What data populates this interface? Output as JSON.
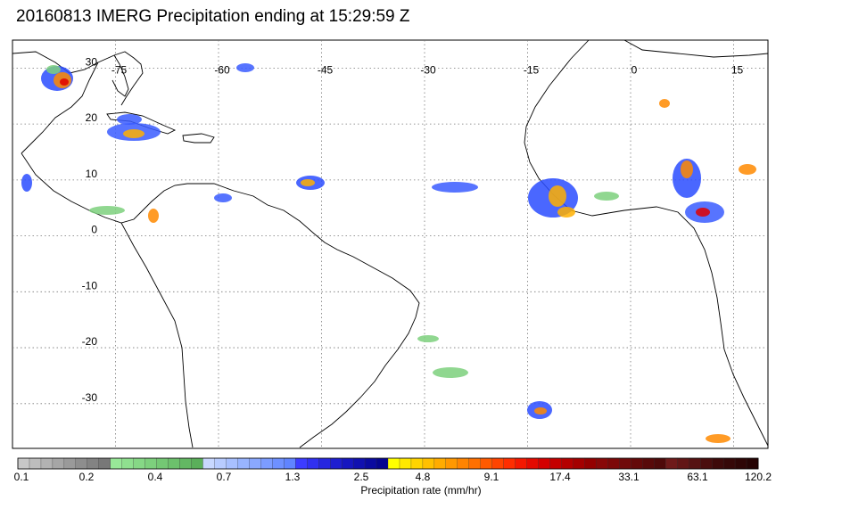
{
  "title": "20160813 IMERG Precipitation ending at 15:29:59 Z",
  "map": {
    "lon_labels": [
      "-75",
      "-60",
      "-45",
      "-30",
      "-15",
      "0",
      "15"
    ],
    "lat_labels": [
      "30",
      "20",
      "10",
      "0",
      "-10",
      "-20",
      "-30"
    ],
    "lon_values": [
      -75,
      -60,
      -45,
      -30,
      -15,
      0,
      15
    ],
    "lat_values": [
      30,
      20,
      10,
      0,
      -10,
      -20,
      -30
    ],
    "lon_range": [
      -90,
      20
    ],
    "lat_range": [
      -38,
      35
    ]
  },
  "colorbar": {
    "title": "Precipitation rate (mm/hr)",
    "tick_labels": [
      "0.1",
      "0.2",
      "0.4",
      "0.7",
      "1.3",
      "2.5",
      "4.8",
      "9.1",
      "17.4",
      "33.1",
      "63.1",
      "120.2"
    ],
    "colors": [
      "#c8c8c8",
      "#bdbdbd",
      "#b2b2b2",
      "#a6a6a6",
      "#9a9a9a",
      "#8e8e8e",
      "#838383",
      "#787878",
      "#98e898",
      "#8fe08f",
      "#86d886",
      "#7dd07d",
      "#74c874",
      "#6cc06c",
      "#63b863",
      "#5aaf5a",
      "#c8d8ff",
      "#b8ccff",
      "#a8c0ff",
      "#98b4ff",
      "#8aa8ff",
      "#7c9cff",
      "#6e90ff",
      "#6084ff",
      "#3c3cff",
      "#3030f0",
      "#2626e0",
      "#1e1ed0",
      "#1616c0",
      "#1010b0",
      "#0a0aa0",
      "#050590",
      "#ffff00",
      "#ffe800",
      "#ffd400",
      "#ffc000",
      "#ffac00",
      "#ff9800",
      "#ff8400",
      "#ff7000",
      "#ff5a00",
      "#ff4400",
      "#ff2e00",
      "#f41800",
      "#e40a00",
      "#d40000",
      "#c40000",
      "#b40000",
      "#a40000",
      "#940000",
      "#880808",
      "#7c0808",
      "#700a0a",
      "#640a0a",
      "#580a0a",
      "#4e0a0a",
      "#6e1a1a",
      "#621616",
      "#561212",
      "#4a0e0e",
      "#3e0a0a",
      "#360808",
      "#2e0606",
      "#260404"
    ]
  }
}
